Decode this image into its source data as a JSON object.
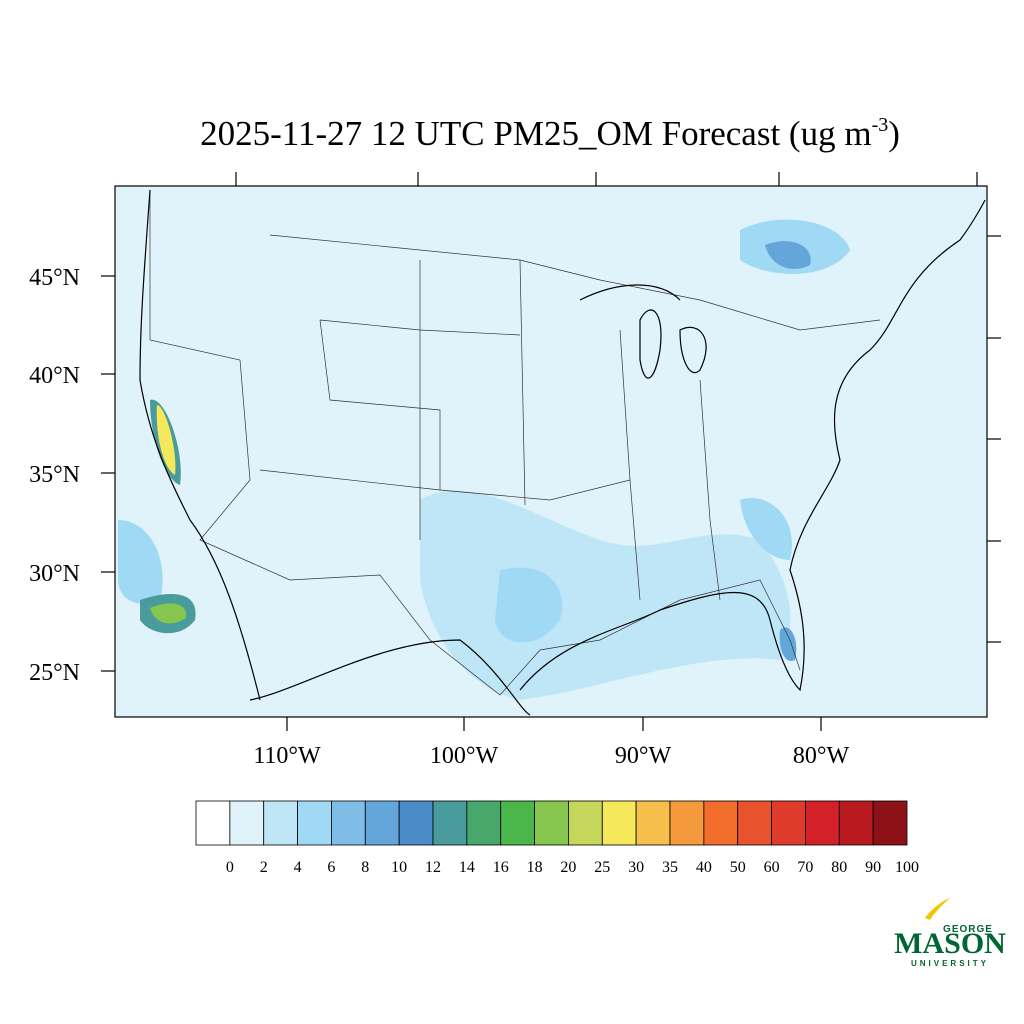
{
  "title": {
    "text": "2025-11-27 12 UTC PM25_OM Forecast (ug m",
    "superscript": "-3",
    "close": ")"
  },
  "lat_labels": [
    "45°N",
    "40°N",
    "35°N",
    "30°N",
    "25°N"
  ],
  "lon_labels": [
    "110°W",
    "100°W",
    "90°W",
    "80°W"
  ],
  "colorbar": {
    "colors": [
      "#ffffff",
      "#e0f3fb",
      "#bfe6f7",
      "#9fd9f4",
      "#80bde6",
      "#65a6da",
      "#4a8cc8",
      "#4a9b9b",
      "#48a86b",
      "#4bb74b",
      "#86c64f",
      "#c4d75a",
      "#f5e85a",
      "#f6bf4b",
      "#f59a3c",
      "#f26c2b",
      "#e8522d",
      "#df3b2a",
      "#d42029",
      "#b91a20",
      "#8d1218"
    ],
    "levels": [
      0,
      2,
      4,
      6,
      8,
      10,
      12,
      14,
      16,
      18,
      20,
      25,
      30,
      35,
      40,
      50,
      60,
      70,
      80,
      90,
      100
    ]
  },
  "logo": {
    "top": "GEORGE",
    "main": "MASON",
    "bottom": "UNIVERSITY"
  }
}
